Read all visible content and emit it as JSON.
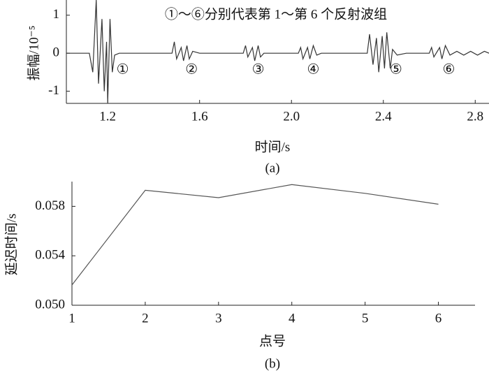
{
  "chart_data": [
    {
      "type": "line",
      "annotation": "①～⑥分别代表第 1～第 6 个反射波组",
      "xlabel": "时间/s",
      "ylabel": "振幅/10⁻⁵",
      "caption": "(a)",
      "labels": [
        "①",
        "②",
        "③",
        "④",
        "⑤",
        "⑥"
      ],
      "x": [
        1.02,
        1.12,
        1.135,
        1.15,
        1.16,
        1.175,
        1.185,
        1.195,
        1.2,
        1.21,
        1.22,
        1.23,
        1.25,
        1.48,
        1.49,
        1.5,
        1.52,
        1.53,
        1.545,
        1.555,
        1.57,
        1.6,
        1.79,
        1.8,
        1.81,
        1.83,
        1.84,
        1.855,
        1.865,
        1.88,
        2.03,
        2.04,
        2.05,
        2.07,
        2.08,
        2.095,
        2.11,
        2.13,
        2.33,
        2.34,
        2.355,
        2.37,
        2.38,
        2.395,
        2.405,
        2.415,
        2.43,
        2.44,
        2.46,
        2.5,
        2.6,
        2.61,
        2.62,
        2.645,
        2.655,
        2.67,
        2.69,
        2.72,
        2.75,
        2.78,
        2.81,
        2.84,
        2.86
      ],
      "series": [
        {
          "color": "#333333",
          "values": [
            0,
            0,
            -0.5,
            1.4,
            -0.8,
            0.9,
            -1.0,
            0.3,
            -1.3,
            0.9,
            -0.5,
            -0.05,
            0,
            0,
            0.3,
            -0.15,
            0.15,
            -0.2,
            0.2,
            -0.15,
            0.05,
            0,
            0,
            0.2,
            -0.1,
            0.15,
            -0.2,
            0.2,
            -0.1,
            0,
            0,
            0.15,
            -0.15,
            0.15,
            -0.15,
            0.2,
            -0.05,
            0,
            0,
            0.5,
            -0.3,
            0.4,
            -0.5,
            0.45,
            -0.4,
            0.55,
            -0.4,
            0.1,
            -0.05,
            0,
            0,
            0.15,
            -0.1,
            0.15,
            -0.15,
            0.2,
            -0.05,
            0.05,
            -0.05,
            0.05,
            -0.05,
            0.05,
            0
          ]
        }
      ],
      "xlim": [
        1.02,
        2.86
      ],
      "xticks": [
        1.2,
        1.6,
        {
          "value": 2.0,
          "label": "2.0"
        },
        2.4,
        2.8
      ],
      "ylim": [
        -1.32,
        1.4
      ],
      "yticks": [
        -1,
        0,
        1
      ]
    },
    {
      "type": "line",
      "xlabel": "点号",
      "ylabel": "延迟时间/s",
      "caption": "(b)",
      "x": [
        1,
        2,
        3,
        4,
        5,
        6
      ],
      "series": [
        {
          "color": "#555555",
          "values": [
            0.05164,
            0.0593,
            0.0587,
            0.05976,
            0.05905,
            0.05817
          ]
        }
      ],
      "xlim": [
        1,
        6.5
      ],
      "xticks": [
        1,
        2,
        3,
        4,
        5,
        6
      ],
      "ylim": [
        0.05,
        0.06
      ],
      "yticks": [
        {
          "value": 0.05,
          "label": "0.050"
        },
        {
          "value": 0.054,
          "label": "0.054"
        },
        {
          "value": 0.058,
          "label": "0.058"
        }
      ]
    }
  ]
}
